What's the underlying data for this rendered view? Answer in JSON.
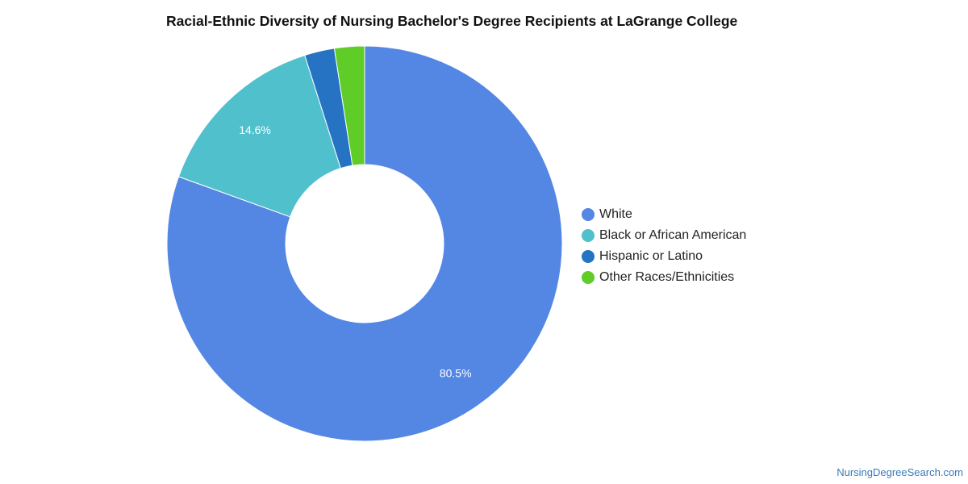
{
  "chart_data": {
    "type": "pie",
    "style": "donut",
    "title": "Racial-Ethnic Diversity of Nursing Bachelor's Degree Recipients at LaGrange College",
    "legend_position": "right",
    "slices": [
      {
        "name": "White",
        "value": 80.5,
        "label": "80.5%",
        "color": "#5486e3"
      },
      {
        "name": "Black or African American",
        "value": 14.6,
        "label": "14.6%",
        "color": "#51c0cd"
      },
      {
        "name": "Hispanic or Latino",
        "value": 2.45,
        "label": "",
        "color": "#2573c2"
      },
      {
        "name": "Other Races/Ethnicities",
        "value": 2.45,
        "label": "",
        "color": "#5fcc27"
      }
    ]
  },
  "source_text": "NursingDegreeSearch.com"
}
